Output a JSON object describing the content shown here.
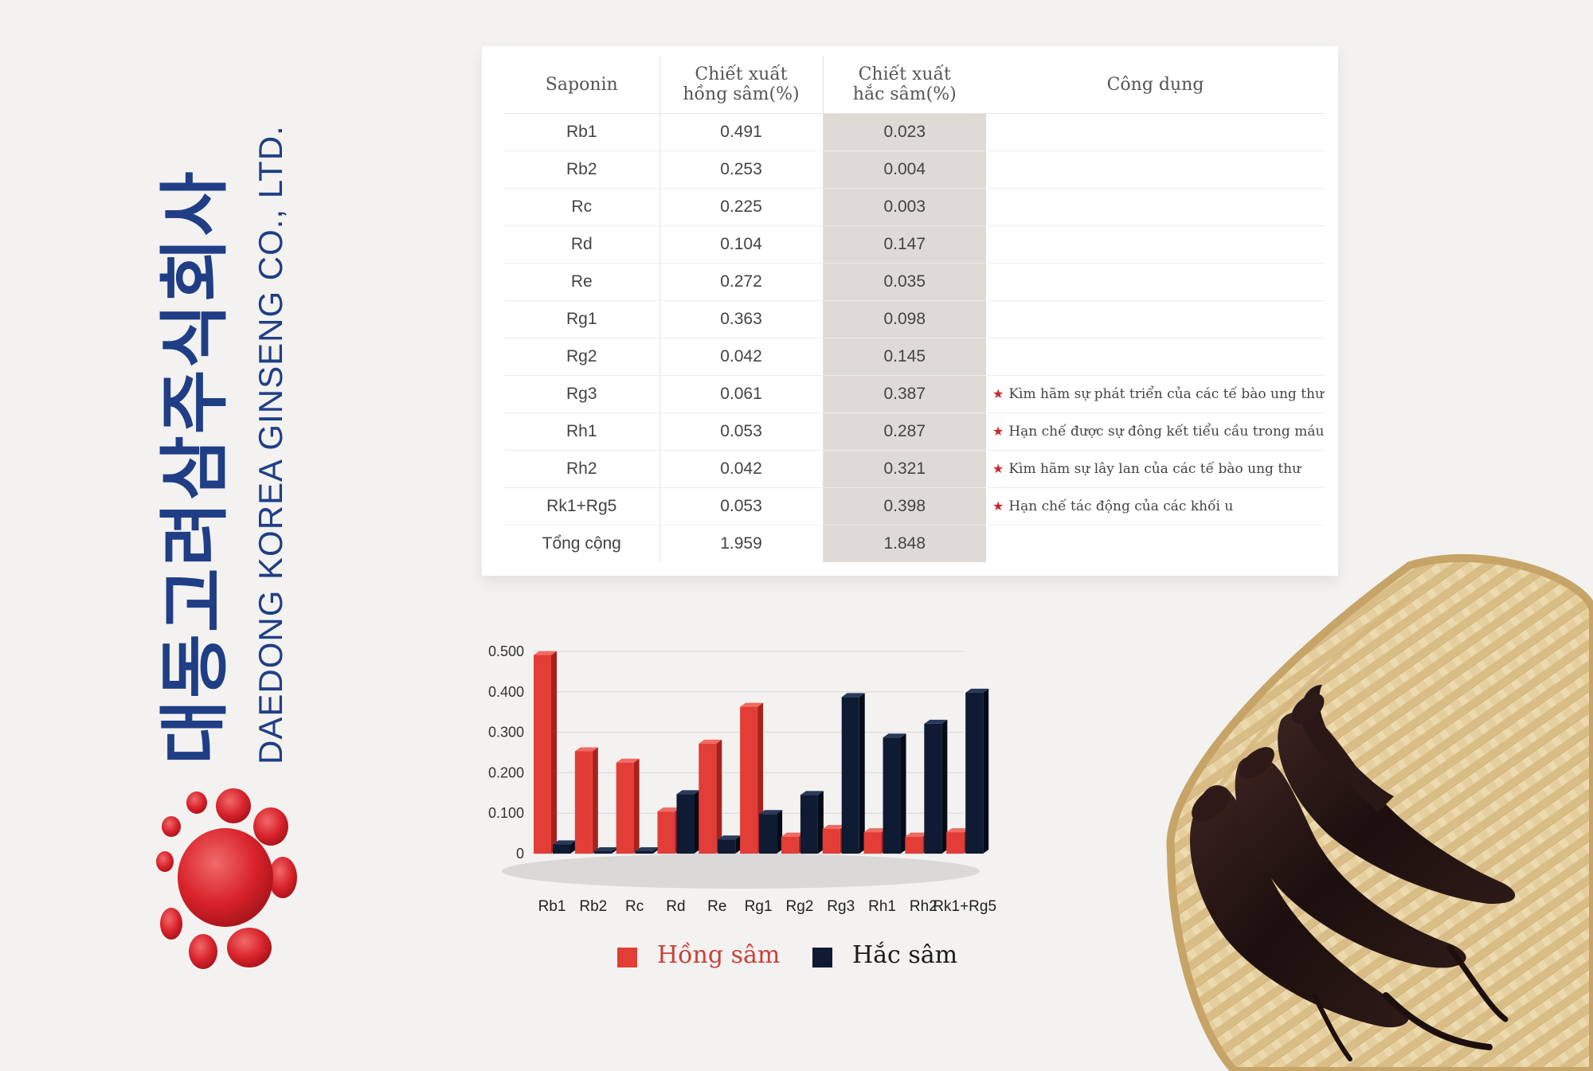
{
  "brand": {
    "korean_name": "대동고려삼주식회사",
    "english_name": "DAEDONG KOREA GINSENG CO., LTD."
  },
  "colors": {
    "brand_blue": "#1f3e86",
    "red_series": "#e23d36",
    "black_series": "#0e1b33",
    "star": "#c8262b",
    "highlight_column": "#dedad6"
  },
  "table": {
    "headers": {
      "saponin": "Saponin",
      "red_line1": "Chiết xuất",
      "red_line2": "hồng sâm(%)",
      "black_line1": "Chiết xuất",
      "black_line2": "hắc sâm(%)",
      "use": "Công dụng"
    },
    "rows": [
      {
        "name": "Rb1",
        "red": "0.491",
        "black": "0.023",
        "use": ""
      },
      {
        "name": "Rb2",
        "red": "0.253",
        "black": "0.004",
        "use": ""
      },
      {
        "name": "Rc",
        "red": "0.225",
        "black": "0.003",
        "use": ""
      },
      {
        "name": "Rd",
        "red": "0.104",
        "black": "0.147",
        "use": ""
      },
      {
        "name": "Re",
        "red": "0.272",
        "black": "0.035",
        "use": ""
      },
      {
        "name": "Rg1",
        "red": "0.363",
        "black": "0.098",
        "use": ""
      },
      {
        "name": "Rg2",
        "red": "0.042",
        "black": "0.145",
        "use": ""
      },
      {
        "name": "Rg3",
        "red": "0.061",
        "black": "0.387",
        "use": "Kìm hãm sự phát triển của các tế bào ung thư"
      },
      {
        "name": "Rh1",
        "red": "0.053",
        "black": "0.287",
        "use": "Hạn chế được sự đông kết tiểu cầu trong máu"
      },
      {
        "name": "Rh2",
        "red": "0.042",
        "black": "0.321",
        "use": "Kìm hãm sự lây lan của các tế bào ung thư"
      },
      {
        "name": "Rk1+Rg5",
        "red": "0.053",
        "black": "0.398",
        "use": "Hạn chế tác động của các khối u"
      }
    ],
    "total": {
      "name": "Tổng cộng",
      "red": "1.959",
      "black": "1.848"
    }
  },
  "chart_data": {
    "type": "bar",
    "categories": [
      "Rb1",
      "Rb2",
      "Rc",
      "Rd",
      "Re",
      "Rg1",
      "Rg2",
      "Rg3",
      "Rh1",
      "Rh2",
      "Rk1+Rg5"
    ],
    "series": [
      {
        "name": "Hồng sâm",
        "color": "#e23d36",
        "values": [
          0.491,
          0.253,
          0.225,
          0.104,
          0.272,
          0.363,
          0.042,
          0.061,
          0.053,
          0.042,
          0.053
        ]
      },
      {
        "name": "Hắc sâm",
        "color": "#0e1b33",
        "values": [
          0.023,
          0.004,
          0.003,
          0.147,
          0.035,
          0.098,
          0.145,
          0.387,
          0.287,
          0.321,
          0.398
        ]
      }
    ],
    "yticks": [
      "0",
      "0.100",
      "0.200",
      "0.300",
      "0.400",
      "0.500"
    ],
    "ylim": [
      0,
      0.5
    ],
    "grid": true,
    "legend_position": "bottom",
    "title": "",
    "xlabel": "",
    "ylabel": ""
  }
}
